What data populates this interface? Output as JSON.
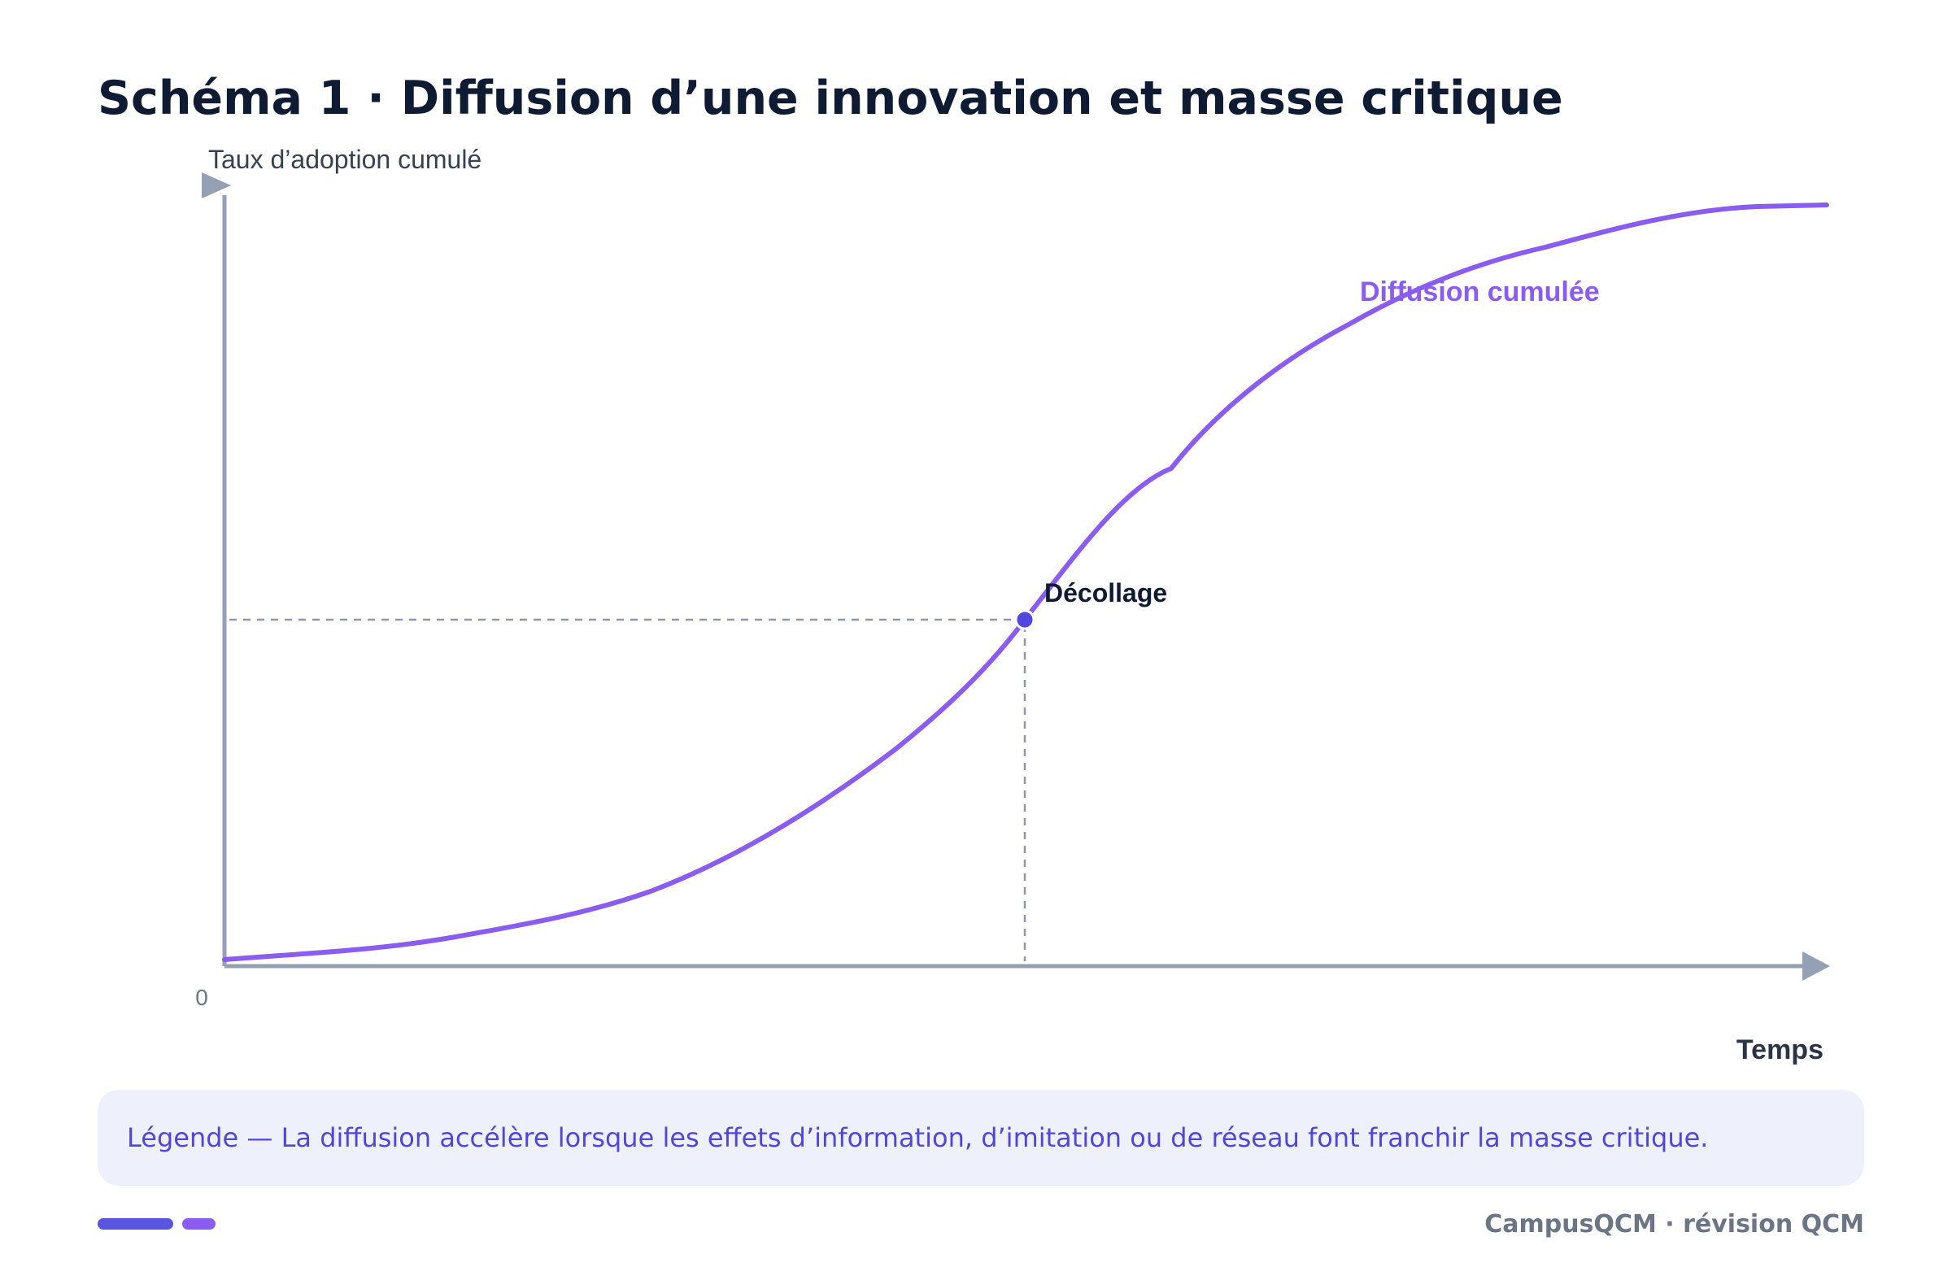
{
  "title": "Schéma 1 · Diffusion d’une innovation et masse critique",
  "axes": {
    "y_label": "Taux d’adoption cumulé",
    "x_label": "Temps",
    "origin_label": "0"
  },
  "curve": {
    "label": "Diffusion cumulée",
    "color": "#8b5cf0"
  },
  "point": {
    "label": "Décollage",
    "color": "#5146e0"
  },
  "legend": {
    "text": "Légende — La diffusion accélère lorsque les effets d’information, d’imitation ou de réseau font franchir la masse critique."
  },
  "footer": {
    "text": "CampusQCM · révision QCM"
  },
  "colors": {
    "axis": "#94a0b4",
    "guide": "#8f98aa",
    "title": "#0f1b33",
    "legend_text": "#5146d6",
    "legend_bg": "#eef1fc"
  }
}
